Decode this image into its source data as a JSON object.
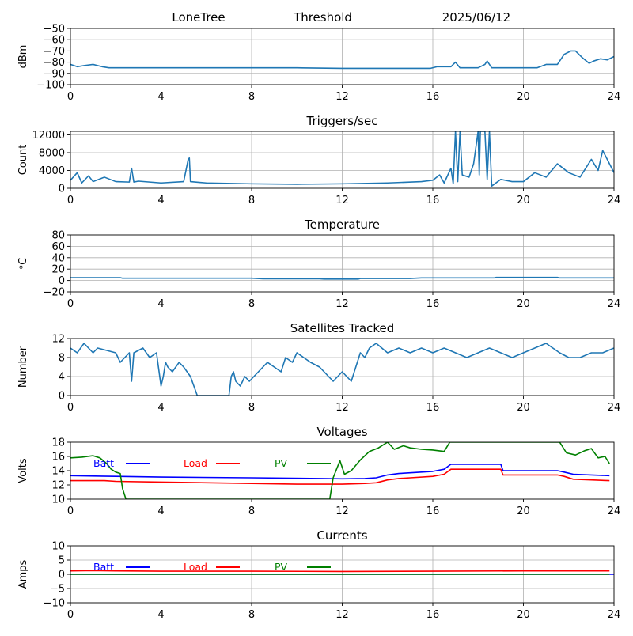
{
  "header": {
    "station": "LoneTree",
    "mode": "Threshold",
    "date": "2025/06/12"
  },
  "colors": {
    "series_blue": "#1f77b4",
    "batt": "#0000ff",
    "load": "#ff0000",
    "pv": "#008000",
    "grid": "#b0b0b0",
    "axes": "#000000"
  },
  "chart_data": [
    {
      "type": "line",
      "title": "",
      "xlabel": "",
      "ylabel": "dBm",
      "xlim": [
        0,
        24
      ],
      "ylim": [
        -100,
        -50
      ],
      "xticks": [
        0,
        4,
        8,
        12,
        16,
        20,
        24
      ],
      "xtick_labels": [
        "0",
        "4",
        "8",
        "12",
        "16",
        "20",
        "24"
      ],
      "yticks": [
        -100,
        -90,
        -80,
        -70,
        -60,
        -50
      ],
      "ytick_labels": [
        "−100",
        "−90",
        "−80",
        "−70",
        "−60",
        "−50"
      ],
      "grid": true,
      "series": [
        {
          "color": "#1f77b4",
          "x": [
            0,
            0.3,
            0.6,
            1.0,
            1.2,
            1.4,
            1.7,
            2.0,
            3,
            4,
            6,
            8,
            10,
            12,
            14,
            15,
            15.9,
            16.2,
            16.8,
            17.0,
            17.2,
            17.5,
            18.0,
            18.3,
            18.4,
            18.6,
            18.9,
            19,
            20,
            20.6,
            21.0,
            21.5,
            21.8,
            22.1,
            22.3,
            22.6,
            22.9,
            23.1,
            23.4,
            23.7,
            24
          ],
          "y": [
            -82,
            -84,
            -83,
            -82,
            -83,
            -84,
            -85,
            -85,
            -85,
            -85,
            -85,
            -85,
            -85,
            -85.5,
            -85.5,
            -85.5,
            -85.5,
            -84,
            -84,
            -80,
            -85,
            -85,
            -85,
            -82,
            -79,
            -85,
            -85,
            -85,
            -85,
            -85,
            -82,
            -82,
            -73,
            -70,
            -70,
            -76,
            -81,
            -79,
            -77,
            -78,
            -75
          ]
        }
      ]
    },
    {
      "type": "line",
      "title": "Triggers/sec",
      "xlabel": "",
      "ylabel": "Count",
      "xlim": [
        0,
        24
      ],
      "ylim": [
        0,
        12800
      ],
      "xticks": [
        0,
        4,
        8,
        12,
        16,
        20,
        24
      ],
      "xtick_labels": [
        "0",
        "4",
        "8",
        "12",
        "16",
        "20",
        "24"
      ],
      "yticks": [
        0,
        4000,
        8000,
        12000
      ],
      "ytick_labels": [
        "0",
        "4000",
        "8000",
        "12000"
      ],
      "grid": true,
      "series": [
        {
          "color": "#1f77b4",
          "x": [
            0,
            0.3,
            0.5,
            0.8,
            1.0,
            1.5,
            2.0,
            2.6,
            2.7,
            2.8,
            3.0,
            4.0,
            5.0,
            5.2,
            5.25,
            5.3,
            6.0,
            8.0,
            10.0,
            12.0,
            14.0,
            15.5,
            16.0,
            16.3,
            16.5,
            16.8,
            16.9,
            17.0,
            17.1,
            17.2,
            17.3,
            17.6,
            17.8,
            18.0,
            18.05,
            18.1,
            18.3,
            18.4,
            18.5,
            18.6,
            19.0,
            19.5,
            20.0,
            20.5,
            21.0,
            21.5,
            22.0,
            22.5,
            23.0,
            23.3,
            23.5,
            24.0
          ],
          "y": [
            1800,
            3500,
            1200,
            2800,
            1500,
            2500,
            1500,
            1400,
            4500,
            1400,
            1600,
            1200,
            1500,
            6500,
            6800,
            1500,
            1200,
            1000,
            900,
            1000,
            1200,
            1500,
            1800,
            3000,
            1200,
            4500,
            1000,
            12800,
            1500,
            12800,
            3000,
            2500,
            5500,
            12800,
            3000,
            12800,
            12800,
            2000,
            12800,
            500,
            2000,
            1500,
            1500,
            3500,
            2500,
            5500,
            3500,
            2500,
            6500,
            4000,
            8500,
            3500
          ]
        }
      ]
    },
    {
      "type": "line",
      "title": "Temperature",
      "xlabel": "",
      "ylabel": "ᵒC",
      "xlim": [
        0,
        24
      ],
      "ylim": [
        -20,
        80
      ],
      "xticks": [
        0,
        4,
        8,
        12,
        16,
        20,
        24
      ],
      "xtick_labels": [
        "0",
        "4",
        "8",
        "12",
        "16",
        "20",
        "24"
      ],
      "yticks": [
        -20,
        0,
        20,
        40,
        60,
        80
      ],
      "ytick_labels": [
        "−20",
        "0",
        "20",
        "40",
        "60",
        "80"
      ],
      "grid": true,
      "series": [
        {
          "color": "#1f77b4",
          "x": [
            0,
            2.2,
            2.3,
            8.0,
            8.5,
            11.0,
            11.2,
            12.7,
            12.8,
            15.0,
            15.5,
            18.7,
            18.8,
            21.5,
            21.6,
            24
          ],
          "y": [
            5,
            5,
            4,
            4,
            3,
            3,
            2.5,
            2.5,
            3.5,
            3.5,
            4.5,
            4.5,
            5.5,
            5.5,
            4.5,
            4.5
          ]
        }
      ]
    },
    {
      "type": "line",
      "title": "Satellites Tracked",
      "xlabel": "",
      "ylabel": "Number",
      "xlim": [
        0,
        24
      ],
      "ylim": [
        0,
        12
      ],
      "xticks": [
        0,
        4,
        8,
        12,
        16,
        20,
        24
      ],
      "xtick_labels": [
        "0",
        "4",
        "8",
        "12",
        "16",
        "20",
        "24"
      ],
      "yticks": [
        0,
        4,
        8,
        12
      ],
      "ytick_labels": [
        "0",
        "4",
        "8",
        "12"
      ],
      "grid": true,
      "series": [
        {
          "color": "#1f77b4",
          "x": [
            0,
            0.3,
            0.6,
            1.0,
            1.2,
            2.0,
            2.2,
            2.4,
            2.6,
            2.7,
            2.8,
            3.2,
            3.5,
            3.8,
            4.0,
            4.1,
            4.2,
            4.3,
            4.5,
            4.8,
            5.0,
            5.3,
            5.6,
            6.0,
            7.0,
            7.1,
            7.2,
            7.3,
            7.5,
            7.7,
            7.9,
            8.1,
            8.3,
            8.5,
            8.7,
            9.0,
            9.3,
            9.5,
            9.8,
            10.0,
            10.3,
            10.6,
            11.0,
            11.2,
            11.4,
            11.6,
            11.8,
            12.0,
            12.2,
            12.4,
            12.6,
            12.8,
            13.0,
            13.2,
            13.5,
            14.0,
            14.5,
            15.0,
            15.5,
            16.0,
            16.5,
            17.0,
            17.5,
            18.0,
            18.5,
            19.0,
            19.5,
            20.0,
            20.5,
            21.0,
            21.3,
            21.6,
            22.0,
            22.5,
            23.0,
            23.5,
            24.0
          ],
          "y": [
            10,
            9,
            11,
            9,
            10,
            9,
            7,
            8,
            9,
            3,
            9,
            10,
            8,
            9,
            2,
            4,
            7,
            6,
            5,
            7,
            6,
            4,
            0,
            0,
            0,
            4,
            5,
            3,
            2,
            4,
            3,
            4,
            5,
            6,
            7,
            6,
            5,
            8,
            7,
            9,
            8,
            7,
            6,
            5,
            4,
            3,
            4,
            5,
            4,
            3,
            6,
            9,
            8,
            10,
            11,
            9,
            10,
            9,
            10,
            9,
            10,
            9,
            8,
            9,
            10,
            9,
            8,
            9,
            10,
            11,
            10,
            9,
            8,
            8,
            9,
            9,
            10
          ]
        }
      ]
    },
    {
      "type": "line",
      "title": "Voltages",
      "xlabel": "",
      "ylabel": "Volts",
      "xlim": [
        0,
        24
      ],
      "ylim": [
        10,
        18
      ],
      "xticks": [
        0,
        4,
        8,
        12,
        16,
        20,
        24
      ],
      "xtick_labels": [
        "0",
        "4",
        "8",
        "12",
        "16",
        "20",
        "24"
      ],
      "yticks": [
        10,
        12,
        14,
        16,
        18
      ],
      "ytick_labels": [
        "10",
        "12",
        "14",
        "16",
        "18"
      ],
      "grid": false,
      "legend_placement": "upper, horizontal",
      "series": [
        {
          "name": "Batt",
          "color": "#0000ff",
          "x": [
            0,
            2,
            4,
            8,
            11,
            12,
            13,
            13.5,
            14,
            14.5,
            15,
            16,
            16.5,
            16.8,
            18,
            19,
            19.1,
            20,
            21.5,
            21.8,
            22.2,
            23,
            23.8
          ],
          "y": [
            13.3,
            13.2,
            13.1,
            13.0,
            12.9,
            12.85,
            12.9,
            13.0,
            13.4,
            13.6,
            13.7,
            13.9,
            14.2,
            14.9,
            14.9,
            14.9,
            14.0,
            14.0,
            14.0,
            13.8,
            13.5,
            13.4,
            13.3
          ]
        },
        {
          "name": "Load",
          "color": "#ff0000",
          "x": [
            0,
            1.5,
            2,
            4,
            8,
            10,
            12,
            13,
            13.5,
            14,
            14.5,
            15,
            16,
            16.5,
            16.8,
            18,
            19,
            19.1,
            20,
            21.5,
            21.8,
            22.2,
            23,
            23.8
          ],
          "y": [
            12.6,
            12.6,
            12.5,
            12.4,
            12.2,
            12.1,
            12.1,
            12.2,
            12.3,
            12.7,
            12.9,
            13.0,
            13.2,
            13.5,
            14.2,
            14.2,
            14.2,
            13.4,
            13.4,
            13.4,
            13.2,
            12.8,
            12.7,
            12.6
          ]
        },
        {
          "name": "PV",
          "color": "#008000",
          "x": [
            0,
            0.5,
            1.0,
            1.3,
            1.6,
            1.8,
            2.0,
            2.2,
            2.3,
            2.45,
            11.45,
            11.6,
            11.9,
            12.1,
            12.4,
            12.8,
            13.2,
            13.6,
            14.0,
            14.3,
            14.7,
            15.0,
            15.5,
            16.0,
            16.5,
            16.75,
            21.6,
            21.9,
            22.3,
            22.7,
            23.0,
            23.3,
            23.6,
            23.8
          ],
          "y": [
            15.8,
            15.9,
            16.1,
            15.8,
            15.0,
            14.2,
            13.8,
            13.6,
            11.5,
            10,
            10,
            13,
            15.4,
            13.5,
            14.0,
            15.5,
            16.7,
            17.2,
            18.0,
            17.0,
            17.5,
            17.2,
            17.0,
            16.9,
            16.7,
            18.0,
            18.0,
            16.5,
            16.2,
            16.8,
            17.1,
            15.8,
            16.0,
            15.0
          ]
        }
      ]
    },
    {
      "type": "line",
      "title": "Currents",
      "xlabel": "",
      "ylabel": "Amps",
      "xlim": [
        0,
        24
      ],
      "ylim": [
        -10,
        10
      ],
      "xticks": [
        0,
        4,
        8,
        12,
        16,
        20,
        24
      ],
      "xtick_labels": [
        "0",
        "4",
        "8",
        "12",
        "16",
        "20",
        "24"
      ],
      "yticks": [
        -10,
        -5,
        0,
        5,
        10
      ],
      "ytick_labels": [
        "−10",
        "−5",
        "0",
        "5",
        "10"
      ],
      "grid": true,
      "legend_placement": "upper, horizontal",
      "series": [
        {
          "name": "Batt",
          "color": "#0000ff",
          "x": [
            0,
            24
          ],
          "y": [
            0,
            0
          ]
        },
        {
          "name": "Load",
          "color": "#ff0000",
          "x": [
            0,
            1,
            2,
            4,
            8,
            12,
            16,
            20,
            23.8
          ],
          "y": [
            1.2,
            1.3,
            1.2,
            1.1,
            1.1,
            1.0,
            1.1,
            1.2,
            1.2
          ]
        },
        {
          "name": "PV",
          "color": "#008000",
          "x": [
            0,
            23.8
          ],
          "y": [
            0,
            0
          ]
        }
      ]
    }
  ]
}
